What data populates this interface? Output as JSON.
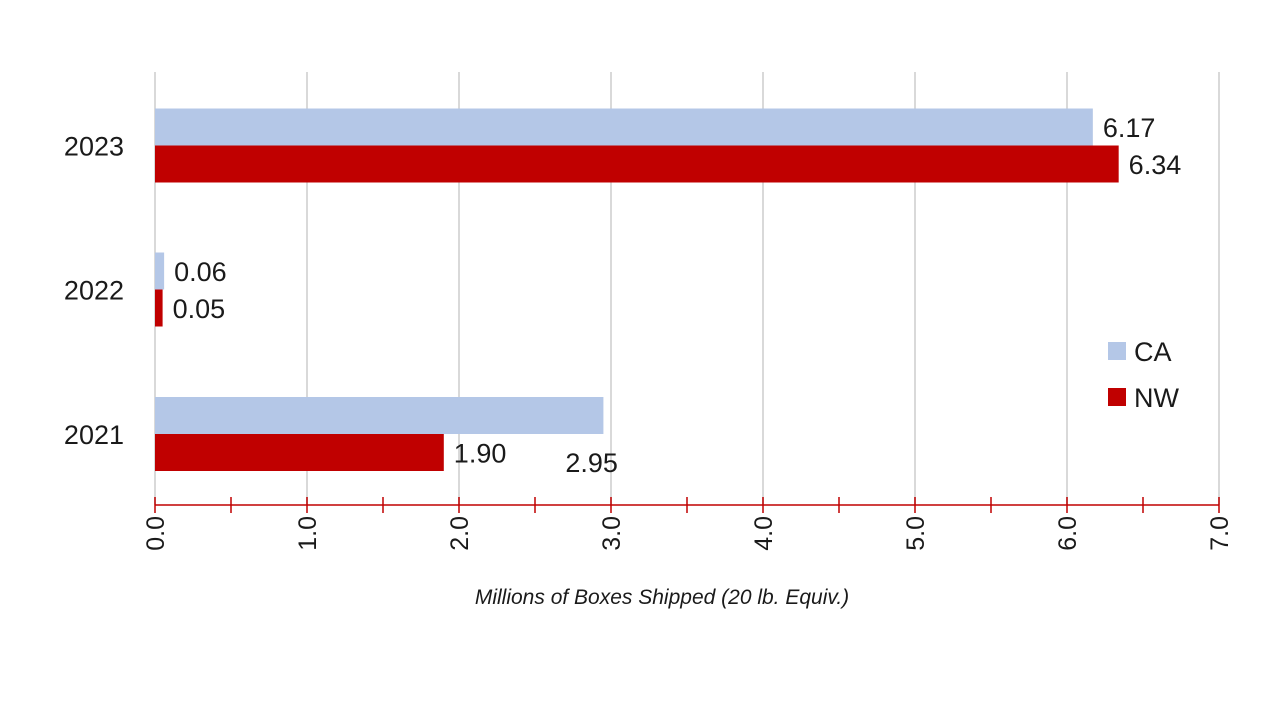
{
  "chart_data": {
    "type": "bar",
    "orientation": "horizontal",
    "categories": [
      "2021",
      "2022",
      "2023"
    ],
    "series": [
      {
        "name": "CA",
        "values": [
          2.95,
          0.06,
          6.17
        ],
        "labels": [
          "2.95",
          "0.06",
          "6.17"
        ],
        "color": "#b4c7e7"
      },
      {
        "name": "NW",
        "values": [
          1.9,
          0.05,
          6.34
        ],
        "labels": [
          "1.90",
          "0.05",
          "6.34"
        ],
        "color": "#c00000"
      }
    ],
    "title": "",
    "xlabel": "Millions of Boxes Shipped (20 lb. Equiv.)",
    "ylabel": "",
    "xlim": [
      0,
      7
    ],
    "x_ticks": [
      "0.0",
      "1.0",
      "2.0",
      "3.0",
      "4.0",
      "5.0",
      "6.0",
      "7.0"
    ],
    "x_tick_values": [
      0,
      1,
      2,
      3,
      4,
      5,
      6,
      7
    ],
    "minor_tick_values": [
      0.5,
      1.5,
      2.5,
      3.5,
      4.5,
      5.5,
      6.5
    ],
    "grid": true,
    "legend_position": "right",
    "axis_color": "#c00000",
    "grid_color": "#d9d9d9"
  }
}
